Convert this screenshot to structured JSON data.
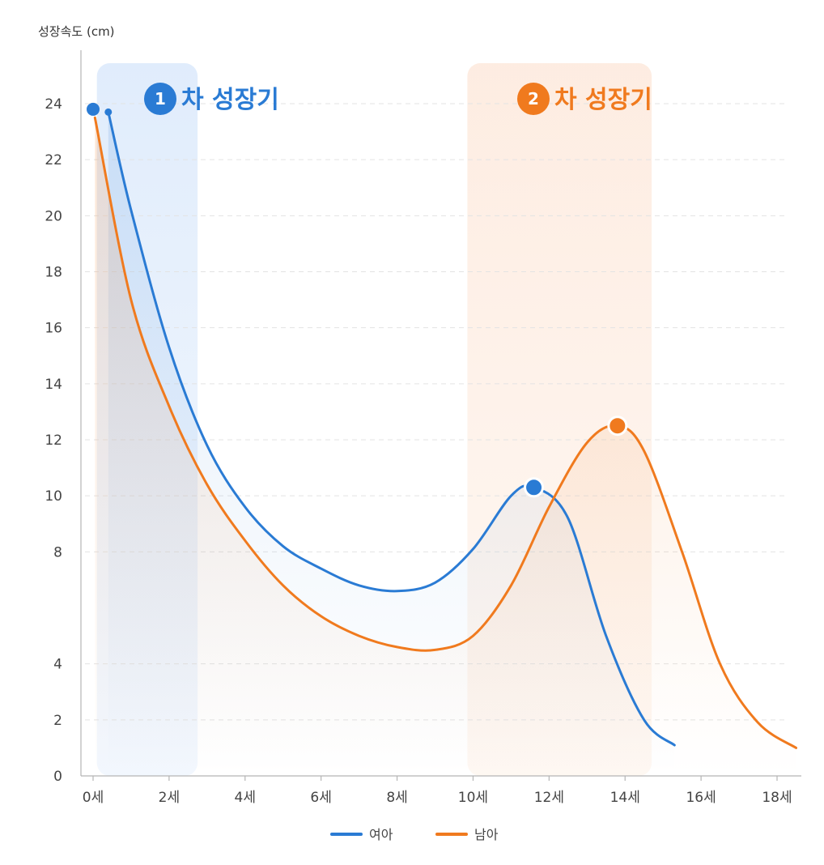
{
  "chart_data": {
    "type": "line",
    "ylabel": "성장속도 (cm)",
    "xlabel": "",
    "x_tick_labels": [
      "0세",
      "2세",
      "4세",
      "6세",
      "8세",
      "10세",
      "12세",
      "14세",
      "16세",
      "18세"
    ],
    "x_tick_values": [
      0,
      2,
      4,
      6,
      8,
      10,
      12,
      14,
      16,
      18
    ],
    "y_tick_labels": [
      "0",
      "2",
      "4",
      "8",
      "10",
      "12",
      "14",
      "16",
      "18",
      "20",
      "22",
      "24"
    ],
    "xlim": [
      0,
      18
    ],
    "ylim": [
      0,
      24
    ],
    "grid": "horizontal dashed",
    "legend_placement": "bottom-center",
    "series": [
      {
        "name": "여아",
        "color": "#2a7bd4",
        "x": [
          0.4,
          1,
          2,
          3,
          4,
          5,
          6,
          7,
          8,
          9,
          10,
          11,
          11.6,
          12.5,
          13.5,
          14.5,
          15.3
        ],
        "y": [
          23.7,
          20.2,
          15.3,
          11.8,
          9.6,
          8.2,
          7.4,
          6.8,
          6.6,
          6.9,
          8.1,
          10.0,
          10.3,
          9.2,
          5.0,
          2.0,
          1.1
        ],
        "peak": {
          "x": 11.6,
          "y": 10.3
        }
      },
      {
        "name": "남아",
        "color": "#f07a1e",
        "x": [
          0.05,
          1,
          2,
          3,
          4,
          5,
          6,
          7,
          8,
          9,
          10,
          11,
          12,
          13,
          13.8,
          14.5,
          15.5,
          16.5,
          17.5,
          18.5
        ],
        "y": [
          23.5,
          17.0,
          13.2,
          10.4,
          8.4,
          6.8,
          5.7,
          5.0,
          4.6,
          4.5,
          5.0,
          6.8,
          9.6,
          11.9,
          12.5,
          11.6,
          8.0,
          4.0,
          1.9,
          1.0
        ],
        "peak": {
          "x": 13.8,
          "y": 12.5
        }
      }
    ],
    "start_markers": [
      {
        "series": "여아",
        "x": 0,
        "y": 23.8
      },
      {
        "series": "여아",
        "x": 0.4,
        "y": 23.7
      }
    ],
    "highlight_bands": [
      {
        "label": "차 성장기",
        "number": "1",
        "x_start": 0.1,
        "x_end": 2.75,
        "color": "#2a7bd4"
      },
      {
        "label": "차 성장기",
        "number": "2",
        "x_start": 9.85,
        "x_end": 14.7,
        "color": "#f07a1e"
      }
    ]
  }
}
